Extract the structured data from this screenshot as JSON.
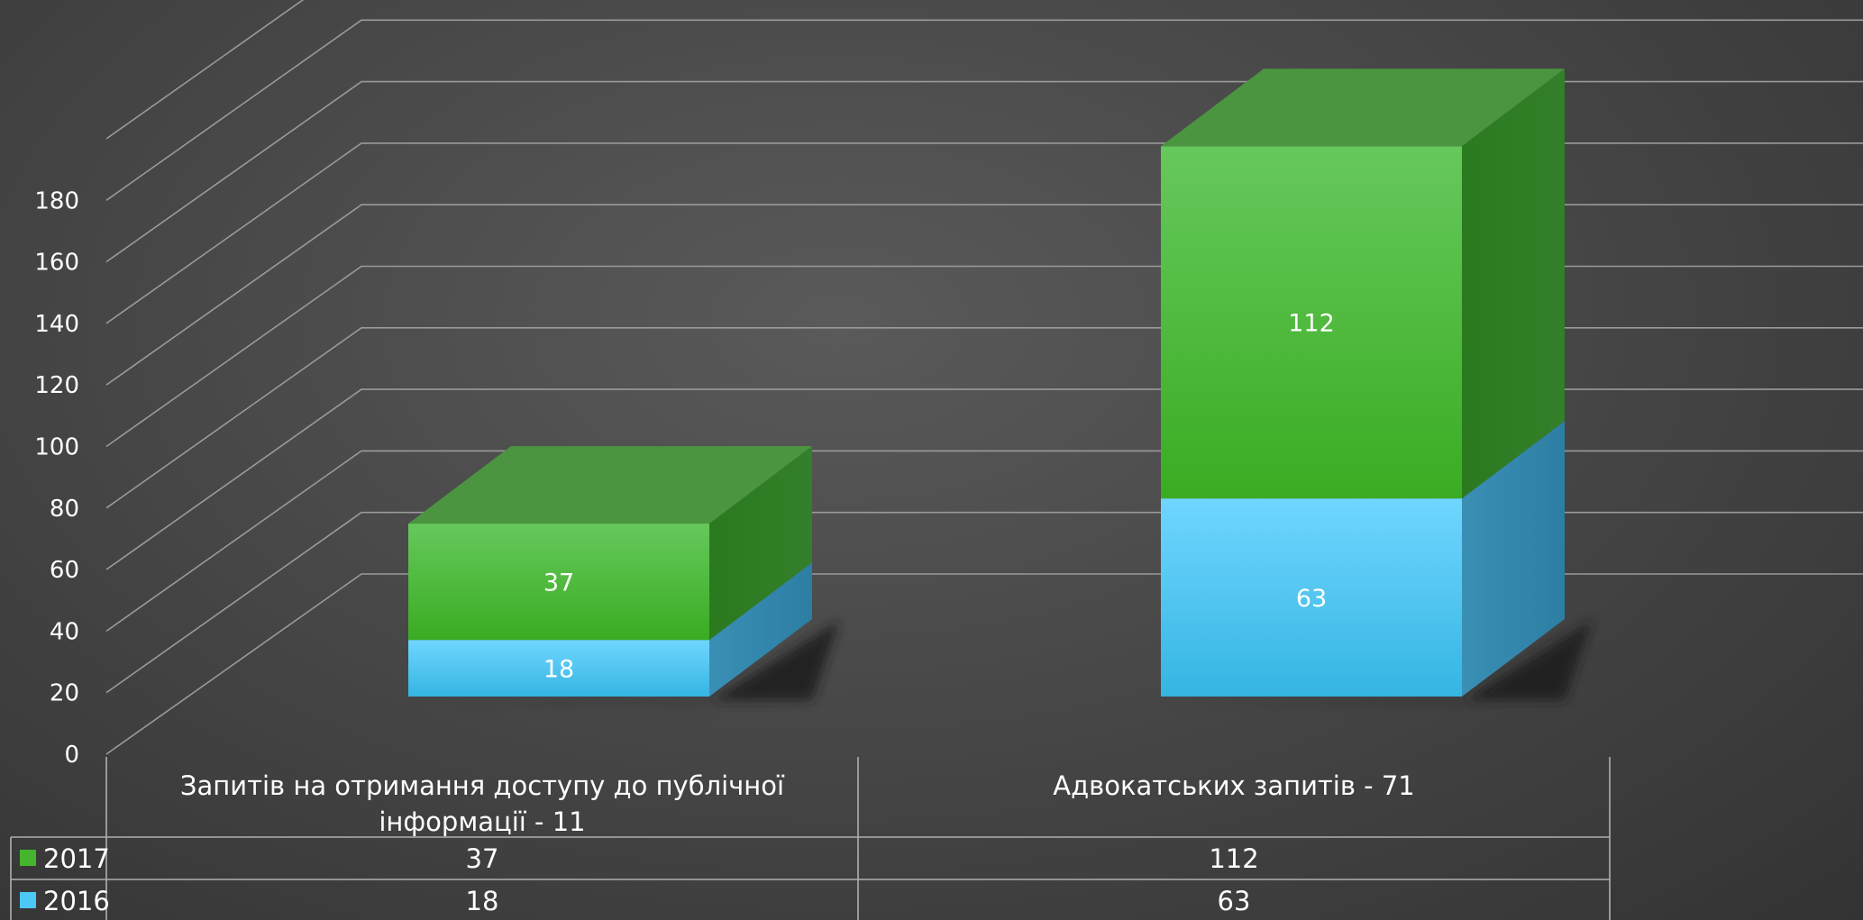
{
  "chart_data": {
    "type": "bar",
    "stacked": true,
    "three_d": true,
    "categories": [
      "Запитів на отримання доступу до публічної інформації - 11",
      "Адвокатських запитів - 71"
    ],
    "category_lines": [
      [
        "Запитів на отримання доступу до публічної",
        "інформації - 11"
      ],
      [
        "Адвокатських запитів - 71"
      ]
    ],
    "series": [
      {
        "name": "2016",
        "values": [
          18,
          63
        ],
        "color": "#4cc8f4",
        "top_color": "#6dd4f8",
        "side_color": "#2f8fb3"
      },
      {
        "name": "2017",
        "values": [
          37,
          112
        ],
        "color": "#44b52c",
        "top_color": "#4b9440",
        "side_color": "#2b7a1c"
      }
    ],
    "legend_order": [
      "2017",
      "2016"
    ],
    "yticks": [
      "0",
      "20",
      "40",
      "60",
      "80",
      "100",
      "120",
      "140",
      "160",
      "180"
    ],
    "ylim": [
      0,
      180
    ],
    "grid": true,
    "legend": "data-table"
  }
}
